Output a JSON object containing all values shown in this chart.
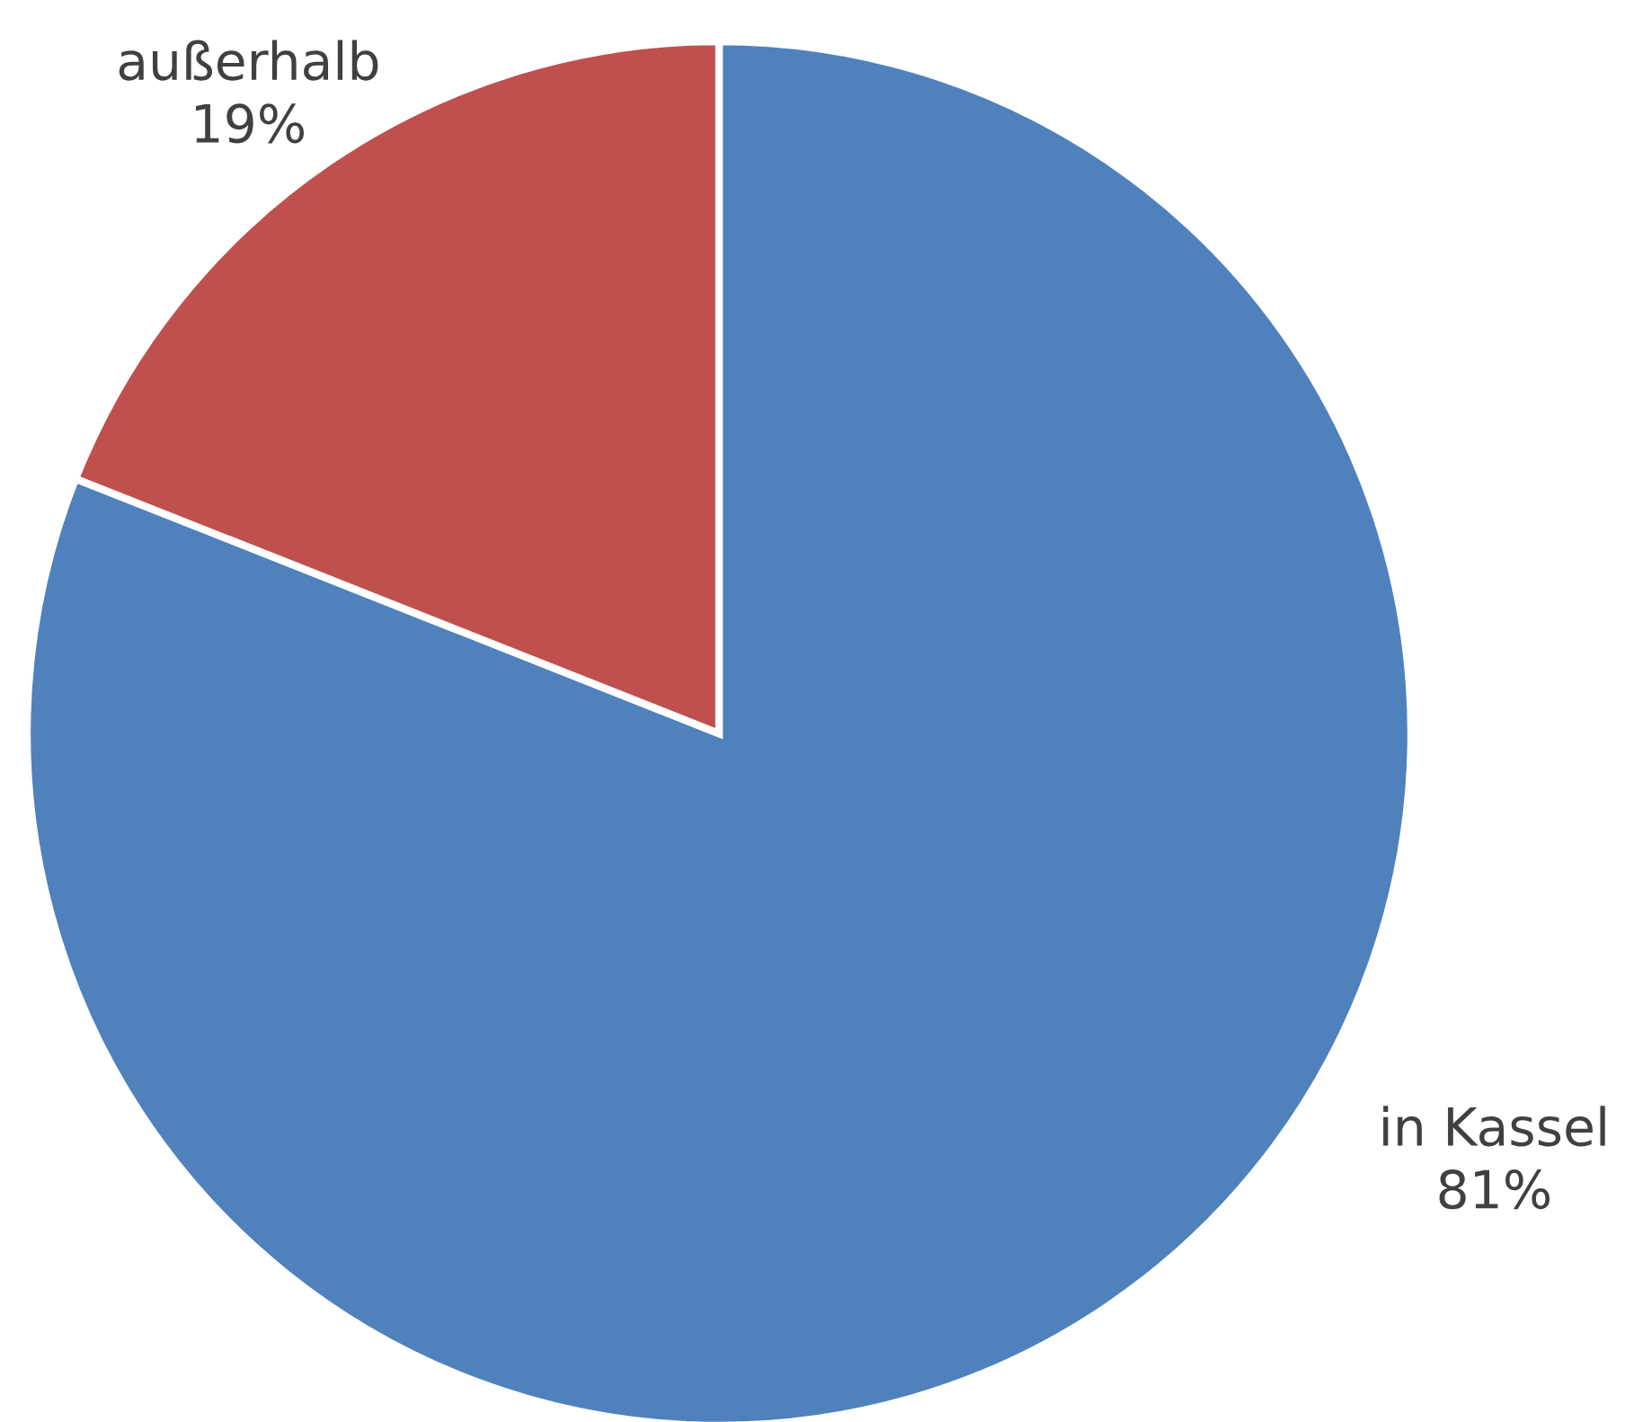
{
  "chart_data": {
    "type": "pie",
    "categories": [
      "in Kassel",
      "außerhalb"
    ],
    "values": [
      81,
      19
    ],
    "colors": [
      "#4f81bd",
      "#c0504d"
    ],
    "value_labels": [
      "81%",
      "19%"
    ]
  }
}
